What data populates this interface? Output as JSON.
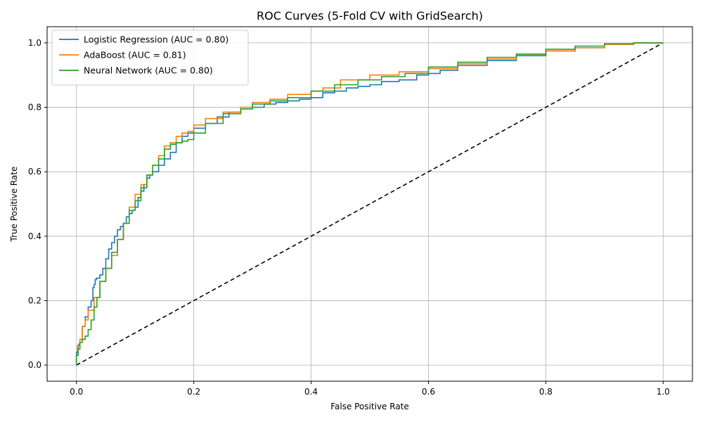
{
  "chart_data": {
    "type": "line",
    "title": "ROC Curves (5-Fold CV with GridSearch)",
    "xlabel": "False Positive Rate",
    "ylabel": "True Positive Rate",
    "xlim": [
      -0.05,
      1.05
    ],
    "ylim": [
      -0.05,
      1.05
    ],
    "xticks": [
      0.0,
      0.2,
      0.4,
      0.6,
      0.8,
      1.0
    ],
    "yticks": [
      0.0,
      0.2,
      0.4,
      0.6,
      0.8,
      1.0
    ],
    "tick_format": "0.0",
    "grid": true,
    "legend_position": "upper-left",
    "series": [
      {
        "name": "Logistic Regression (AUC = 0.80)",
        "color": "#1f77b4",
        "x": [
          0.0,
          0.002,
          0.004,
          0.006,
          0.01,
          0.015,
          0.02,
          0.025,
          0.028,
          0.03,
          0.032,
          0.034,
          0.036,
          0.04,
          0.045,
          0.05,
          0.055,
          0.06,
          0.065,
          0.07,
          0.075,
          0.08,
          0.085,
          0.09,
          0.095,
          0.1,
          0.105,
          0.11,
          0.115,
          0.12,
          0.125,
          0.13,
          0.14,
          0.15,
          0.16,
          0.17,
          0.18,
          0.19,
          0.2,
          0.22,
          0.24,
          0.26,
          0.28,
          0.3,
          0.32,
          0.34,
          0.36,
          0.38,
          0.4,
          0.42,
          0.44,
          0.46,
          0.48,
          0.5,
          0.52,
          0.55,
          0.58,
          0.6,
          0.62,
          0.65,
          0.7,
          0.75,
          0.8,
          0.85,
          0.9,
          0.95,
          1.0
        ],
        "y": [
          0.0,
          0.04,
          0.06,
          0.065,
          0.08,
          0.12,
          0.15,
          0.18,
          0.2,
          0.24,
          0.25,
          0.265,
          0.27,
          0.27,
          0.28,
          0.3,
          0.33,
          0.36,
          0.38,
          0.4,
          0.42,
          0.43,
          0.44,
          0.46,
          0.47,
          0.48,
          0.49,
          0.52,
          0.54,
          0.56,
          0.58,
          0.59,
          0.6,
          0.62,
          0.64,
          0.66,
          0.69,
          0.71,
          0.72,
          0.735,
          0.75,
          0.77,
          0.785,
          0.795,
          0.8,
          0.81,
          0.815,
          0.82,
          0.825,
          0.83,
          0.845,
          0.85,
          0.86,
          0.865,
          0.87,
          0.88,
          0.885,
          0.9,
          0.905,
          0.915,
          0.93,
          0.945,
          0.96,
          0.975,
          0.985,
          0.995,
          1.0
        ]
      },
      {
        "name": "AdaBoost (AUC = 0.81)",
        "color": "#ff7f0e",
        "x": [
          0.0,
          0.003,
          0.006,
          0.01,
          0.015,
          0.02,
          0.03,
          0.04,
          0.05,
          0.06,
          0.07,
          0.08,
          0.09,
          0.1,
          0.11,
          0.12,
          0.13,
          0.14,
          0.15,
          0.16,
          0.17,
          0.18,
          0.19,
          0.2,
          0.22,
          0.25,
          0.28,
          0.3,
          0.33,
          0.36,
          0.4,
          0.42,
          0.45,
          0.5,
          0.55,
          0.6,
          0.65,
          0.7,
          0.75,
          0.8,
          0.85,
          0.9,
          0.95,
          1.0
        ],
        "y": [
          0.0,
          0.03,
          0.06,
          0.08,
          0.12,
          0.14,
          0.17,
          0.21,
          0.26,
          0.3,
          0.34,
          0.39,
          0.44,
          0.49,
          0.53,
          0.56,
          0.59,
          0.62,
          0.65,
          0.68,
          0.69,
          0.71,
          0.72,
          0.725,
          0.745,
          0.765,
          0.785,
          0.8,
          0.815,
          0.825,
          0.84,
          0.85,
          0.86,
          0.885,
          0.9,
          0.91,
          0.92,
          0.935,
          0.95,
          0.965,
          0.975,
          0.985,
          0.995,
          1.0
        ]
      },
      {
        "name": "Neural Network (AUC = 0.80)",
        "color": "#2ca02c",
        "x": [
          0.0,
          0.003,
          0.006,
          0.01,
          0.015,
          0.02,
          0.025,
          0.03,
          0.035,
          0.04,
          0.05,
          0.06,
          0.07,
          0.08,
          0.09,
          0.1,
          0.11,
          0.12,
          0.13,
          0.14,
          0.15,
          0.16,
          0.17,
          0.18,
          0.19,
          0.2,
          0.22,
          0.25,
          0.28,
          0.3,
          0.33,
          0.36,
          0.4,
          0.44,
          0.48,
          0.52,
          0.56,
          0.6,
          0.65,
          0.7,
          0.75,
          0.8,
          0.85,
          0.9,
          0.95,
          1.0
        ],
        "y": [
          0.0,
          0.03,
          0.05,
          0.07,
          0.08,
          0.09,
          0.11,
          0.14,
          0.18,
          0.21,
          0.26,
          0.3,
          0.35,
          0.39,
          0.44,
          0.48,
          0.51,
          0.55,
          0.59,
          0.62,
          0.64,
          0.67,
          0.685,
          0.69,
          0.695,
          0.7,
          0.72,
          0.75,
          0.78,
          0.795,
          0.81,
          0.82,
          0.83,
          0.85,
          0.87,
          0.885,
          0.895,
          0.905,
          0.925,
          0.94,
          0.955,
          0.965,
          0.98,
          0.99,
          0.997,
          1.0
        ]
      },
      {
        "name": "",
        "color": "#000000",
        "dashed": true,
        "x": [
          0.0,
          1.0
        ],
        "y": [
          0.0,
          1.0
        ]
      }
    ]
  }
}
